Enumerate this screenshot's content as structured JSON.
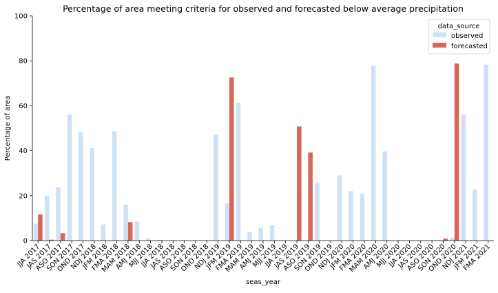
{
  "chart_data": {
    "type": "bar",
    "title": "Percentage of area meeting criteria for observed and forecasted below average precipitation",
    "xlabel": "seas_year",
    "ylabel": "Percentage of area",
    "ylim": [
      0,
      100
    ],
    "yticks": [
      0,
      20,
      40,
      60,
      80,
      100
    ],
    "grid": false,
    "legend": {
      "title": "data_source",
      "placement": "top-right",
      "entries": [
        "observed",
        "forecasted"
      ]
    },
    "colors": {
      "observed": "#cfe1f2",
      "forecasted": "#d9655b"
    },
    "categories": [
      "JJA 2017",
      "JAS 2017",
      "ASO 2017",
      "SON 2017",
      "OND 2017",
      "NDJ 2018",
      "JFM 2018",
      "FMA 2018",
      "MAM 2018",
      "AMJ 2018",
      "MJJ 2018",
      "JJA 2018",
      "JAS 2018",
      "ASO 2018",
      "SON 2018",
      "OND 2018",
      "NDJ 2019",
      "JFM 2019",
      "FMA 2019",
      "MAM 2019",
      "AMJ 2019",
      "MJJ 2019",
      "JJA 2019",
      "JAS 2019",
      "ASO 2019",
      "SON 2019",
      "OND 2019",
      "NDJ 2020",
      "JFM 2020",
      "FMA 2020",
      "MAM 2020",
      "AMJ 2020",
      "MJJ 2020",
      "JJA 2020",
      "JAS 2020",
      "ASO 2020",
      "SON 2020",
      "OND 2020",
      "NDJ 2021",
      "JFM 2021",
      "FMA 2021"
    ],
    "series": [
      {
        "name": "observed",
        "values": [
          7.5,
          19.8,
          23.8,
          56.0,
          48.2,
          41.2,
          7.2,
          48.6,
          16.0,
          8.5,
          1.0,
          0.3,
          0.2,
          0.1,
          0.0,
          0.0,
          47.3,
          16.5,
          61.4,
          3.8,
          5.8,
          7.0,
          0.2,
          0.0,
          0.0,
          25.9,
          0.0,
          29.0,
          22.0,
          20.7,
          77.8,
          39.7,
          0.0,
          0.0,
          0.0,
          0.0,
          0.2,
          1.3,
          56.0,
          22.8,
          78.3
        ]
      },
      {
        "name": "forecasted",
        "values": [
          11.6,
          0.4,
          3.3,
          0.0,
          0.0,
          0.0,
          0.0,
          0.0,
          8.2,
          0.0,
          0.0,
          0.0,
          0.0,
          0.0,
          0.0,
          0.0,
          0.0,
          72.6,
          0.0,
          0.0,
          0.0,
          0.0,
          0.0,
          50.8,
          39.2,
          0.0,
          0.0,
          0.0,
          0.0,
          0.0,
          0.0,
          0.0,
          0.0,
          0.0,
          0.0,
          0.0,
          0.9,
          78.8,
          0.0,
          0.0,
          0.0
        ]
      }
    ]
  }
}
